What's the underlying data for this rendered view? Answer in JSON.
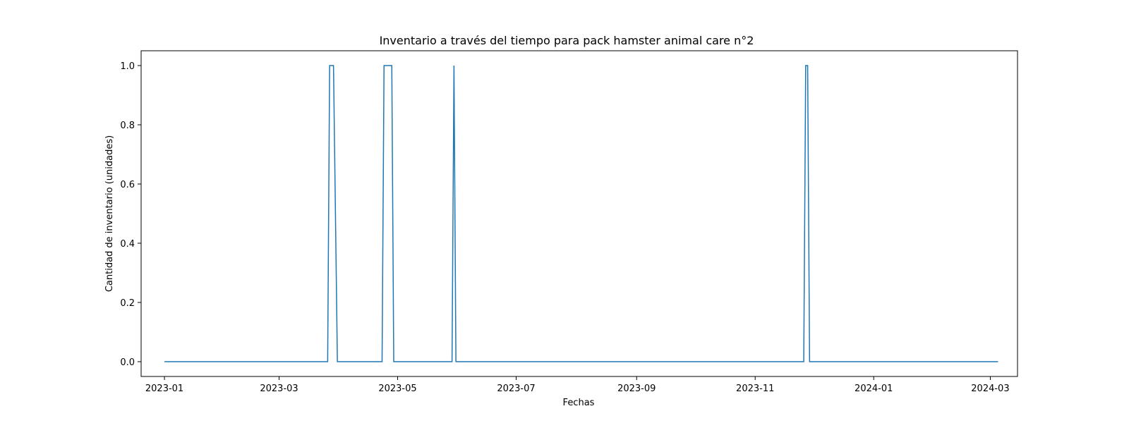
{
  "chart_data": {
    "type": "line",
    "title": "Inventario a través del tiempo para pack hamster animal care n°2",
    "xlabel": "Fechas",
    "ylabel": "Cantidad de inventario (unidades)",
    "x_ticks": [
      "2023-01",
      "2023-03",
      "2023-05",
      "2023-07",
      "2023-09",
      "2023-11",
      "2024-01",
      "2024-03"
    ],
    "y_ticks": [
      "0.0",
      "0.2",
      "0.4",
      "0.6",
      "0.8",
      "1.0"
    ],
    "xlim": [
      "2022-12-20",
      "2024-03-15"
    ],
    "ylim": [
      -0.05,
      1.05
    ],
    "grid": false,
    "legend": "none",
    "color": "#1f77b4",
    "series": [
      {
        "points": [
          [
            "2023-01-01",
            0
          ],
          [
            "2023-03-26",
            0
          ],
          [
            "2023-03-27",
            1
          ],
          [
            "2023-03-29",
            1
          ],
          [
            "2023-03-31",
            0
          ],
          [
            "2023-04-23",
            0
          ],
          [
            "2023-04-24",
            1
          ],
          [
            "2023-04-28",
            1
          ],
          [
            "2023-04-29",
            0
          ],
          [
            "2023-05-29",
            0
          ],
          [
            "2023-05-30",
            1
          ],
          [
            "2023-05-31",
            0
          ],
          [
            "2023-11-26",
            0
          ],
          [
            "2023-11-27",
            1
          ],
          [
            "2023-11-28",
            1
          ],
          [
            "2023-11-29",
            0
          ],
          [
            "2024-03-05",
            0
          ]
        ]
      }
    ]
  }
}
